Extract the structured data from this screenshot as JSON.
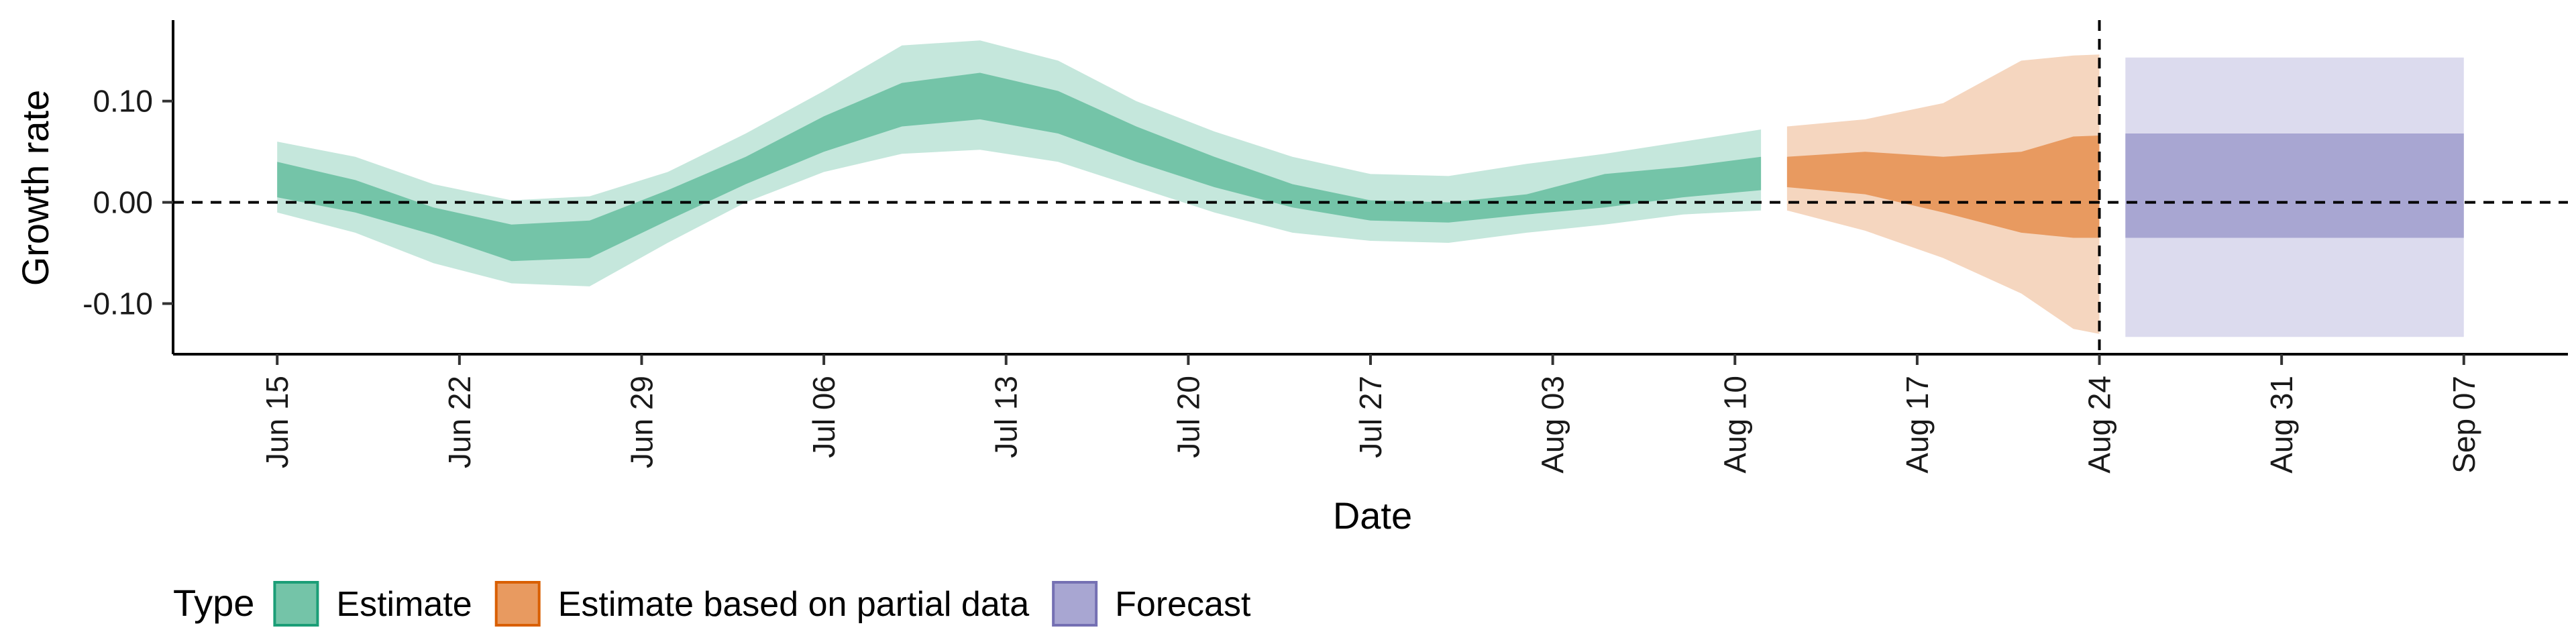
{
  "chart_data": {
    "type": "area",
    "xlabel": "Date",
    "ylabel": "Growth rate",
    "x_ticks": [
      "Jun 15",
      "Jun 22",
      "Jun 29",
      "Jul 06",
      "Jul 13",
      "Jul 20",
      "Jul 27",
      "Aug 03",
      "Aug 10",
      "Aug 17",
      "Aug 24",
      "Aug 31",
      "Sep 07"
    ],
    "x_tick_dates": [
      "2020-06-15",
      "2020-06-22",
      "2020-06-29",
      "2020-07-06",
      "2020-07-13",
      "2020-07-20",
      "2020-07-27",
      "2020-08-03",
      "2020-08-10",
      "2020-08-17",
      "2020-08-24",
      "2020-08-31",
      "2020-09-07"
    ],
    "xlim": [
      "2020-06-11",
      "2020-09-11"
    ],
    "y_ticks": [
      -0.1,
      0.0,
      0.1
    ],
    "y_tick_labels": [
      "-0.10",
      "0.00",
      "0.10"
    ],
    "ylim": [
      -0.15,
      0.18
    ],
    "reference_lines": {
      "horizontal_y": 0.0,
      "vertical_x": "2020-08-24",
      "style": "dashed"
    },
    "grid": false,
    "legend": {
      "title": "Type",
      "position": "bottom-left",
      "entries": [
        {
          "label": "Estimate",
          "fill": "#74c4a8",
          "stroke": "#1b9e77"
        },
        {
          "label": "Estimate based on partial data",
          "fill": "#e89a60",
          "stroke": "#d95f02"
        },
        {
          "label": "Forecast",
          "fill": "#a8a6d2",
          "stroke": "#7570b3"
        }
      ]
    },
    "series": [
      {
        "name": "Estimate",
        "inner_fill": "#74c4a8",
        "outer_fill": "#c5e7dc",
        "points": [
          {
            "x": "2020-06-15",
            "outer_low": -0.01,
            "inner_low": 0.005,
            "inner_high": 0.04,
            "outer_high": 0.06
          },
          {
            "x": "2020-06-18",
            "outer_low": -0.03,
            "inner_low": -0.01,
            "inner_high": 0.022,
            "outer_high": 0.045
          },
          {
            "x": "2020-06-21",
            "outer_low": -0.06,
            "inner_low": -0.032,
            "inner_high": -0.005,
            "outer_high": 0.018
          },
          {
            "x": "2020-06-24",
            "outer_low": -0.08,
            "inner_low": -0.058,
            "inner_high": -0.022,
            "outer_high": 0.002
          },
          {
            "x": "2020-06-27",
            "outer_low": -0.083,
            "inner_low": -0.055,
            "inner_high": -0.018,
            "outer_high": 0.006
          },
          {
            "x": "2020-06-30",
            "outer_low": -0.04,
            "inner_low": -0.018,
            "inner_high": 0.012,
            "outer_high": 0.03
          },
          {
            "x": "2020-07-03",
            "outer_low": 0.0,
            "inner_low": 0.018,
            "inner_high": 0.045,
            "outer_high": 0.068
          },
          {
            "x": "2020-07-06",
            "outer_low": 0.03,
            "inner_low": 0.05,
            "inner_high": 0.085,
            "outer_high": 0.11
          },
          {
            "x": "2020-07-09",
            "outer_low": 0.048,
            "inner_low": 0.075,
            "inner_high": 0.118,
            "outer_high": 0.155
          },
          {
            "x": "2020-07-12",
            "outer_low": 0.052,
            "inner_low": 0.082,
            "inner_high": 0.128,
            "outer_high": 0.16
          },
          {
            "x": "2020-07-15",
            "outer_low": 0.04,
            "inner_low": 0.068,
            "inner_high": 0.11,
            "outer_high": 0.14
          },
          {
            "x": "2020-07-18",
            "outer_low": 0.015,
            "inner_low": 0.04,
            "inner_high": 0.075,
            "outer_high": 0.1
          },
          {
            "x": "2020-07-21",
            "outer_low": -0.01,
            "inner_low": 0.015,
            "inner_high": 0.045,
            "outer_high": 0.07
          },
          {
            "x": "2020-07-24",
            "outer_low": -0.03,
            "inner_low": -0.005,
            "inner_high": 0.018,
            "outer_high": 0.045
          },
          {
            "x": "2020-07-27",
            "outer_low": -0.038,
            "inner_low": -0.018,
            "inner_high": 0.002,
            "outer_high": 0.028
          },
          {
            "x": "2020-07-30",
            "outer_low": -0.04,
            "inner_low": -0.02,
            "inner_high": 0.0,
            "outer_high": 0.026
          },
          {
            "x": "2020-08-02",
            "outer_low": -0.03,
            "inner_low": -0.012,
            "inner_high": 0.008,
            "outer_high": 0.038
          },
          {
            "x": "2020-08-05",
            "outer_low": -0.022,
            "inner_low": -0.005,
            "inner_high": 0.028,
            "outer_high": 0.048
          },
          {
            "x": "2020-08-08",
            "outer_low": -0.012,
            "inner_low": 0.005,
            "inner_high": 0.035,
            "outer_high": 0.06
          },
          {
            "x": "2020-08-11",
            "outer_low": -0.008,
            "inner_low": 0.012,
            "inner_high": 0.045,
            "outer_high": 0.072
          }
        ]
      },
      {
        "name": "Estimate based on partial data",
        "inner_fill": "#e89a60",
        "outer_fill": "#f5d6bf",
        "points": [
          {
            "x": "2020-08-12",
            "outer_low": -0.008,
            "inner_low": 0.015,
            "inner_high": 0.045,
            "outer_high": 0.075
          },
          {
            "x": "2020-08-15",
            "outer_low": -0.028,
            "inner_low": 0.008,
            "inner_high": 0.05,
            "outer_high": 0.082
          },
          {
            "x": "2020-08-18",
            "outer_low": -0.055,
            "inner_low": -0.01,
            "inner_high": 0.045,
            "outer_high": 0.098
          },
          {
            "x": "2020-08-21",
            "outer_low": -0.09,
            "inner_low": -0.03,
            "inner_high": 0.05,
            "outer_high": 0.14
          },
          {
            "x": "2020-08-23",
            "outer_low": -0.125,
            "inner_low": -0.035,
            "inner_high": 0.065,
            "outer_high": 0.145
          },
          {
            "x": "2020-08-24",
            "outer_low": -0.13,
            "inner_low": -0.035,
            "inner_high": 0.066,
            "outer_high": 0.146
          }
        ]
      },
      {
        "name": "Forecast",
        "inner_fill": "#a8a6d2",
        "outer_fill": "#dcdbee",
        "points": [
          {
            "x": "2020-08-25",
            "outer_low": -0.133,
            "inner_low": -0.035,
            "inner_high": 0.068,
            "outer_high": 0.143
          },
          {
            "x": "2020-09-07",
            "outer_low": -0.133,
            "inner_low": -0.035,
            "inner_high": 0.068,
            "outer_high": 0.143
          }
        ]
      }
    ]
  }
}
